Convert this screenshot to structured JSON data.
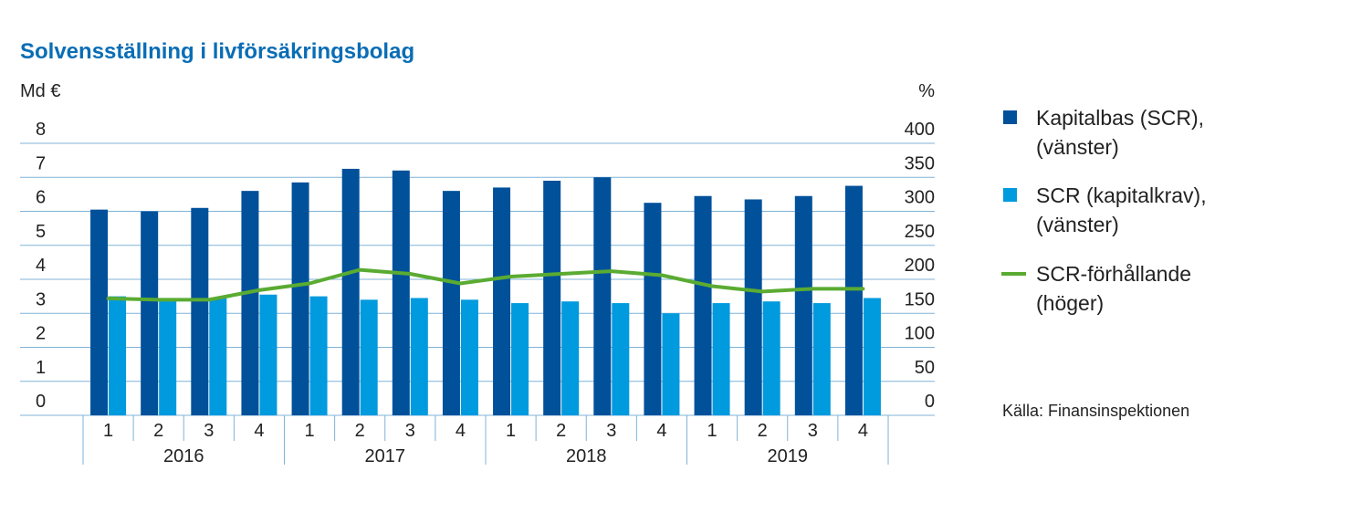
{
  "chart_data": {
    "type": "bar",
    "title": "Solvensställning i livförsäkringsbolag",
    "left_unit": "Md €",
    "right_unit": "%",
    "left_ylim": [
      0,
      8
    ],
    "right_ylim": [
      0,
      400
    ],
    "left_ticks": [
      "0",
      "1",
      "2",
      "3",
      "4",
      "5",
      "6",
      "7",
      "8"
    ],
    "right_ticks": [
      "0",
      "50",
      "100",
      "150",
      "200",
      "250",
      "300",
      "350",
      "400"
    ],
    "quarters": [
      "1",
      "2",
      "3",
      "4",
      "1",
      "2",
      "3",
      "4",
      "1",
      "2",
      "3",
      "4",
      "1",
      "2",
      "3",
      "4"
    ],
    "years": [
      "2016",
      "2017",
      "2018",
      "2019"
    ],
    "series": [
      {
        "name": "Kapitalbas (SCR), (vänster)",
        "axis": "left",
        "kind": "bar",
        "color": "#00509a",
        "values": [
          6.05,
          6.0,
          6.1,
          6.6,
          6.85,
          7.25,
          7.2,
          6.6,
          6.7,
          6.9,
          7.0,
          6.25,
          6.45,
          6.35,
          6.45,
          6.75
        ]
      },
      {
        "name": "SCR (kapitalkrav), (vänster)",
        "axis": "left",
        "kind": "bar",
        "color": "#009ade",
        "values": [
          3.5,
          3.45,
          3.45,
          3.55,
          3.5,
          3.4,
          3.45,
          3.4,
          3.3,
          3.35,
          3.3,
          3.0,
          3.3,
          3.35,
          3.3,
          3.45
        ]
      },
      {
        "name": "SCR-förhållande (höger)",
        "axis": "right",
        "kind": "line",
        "color": "#5aab32",
        "values": [
          172,
          170,
          170,
          184,
          194,
          214,
          208,
          194,
          204,
          208,
          212,
          206,
          190,
          182,
          186,
          186
        ]
      }
    ],
    "legend": [
      {
        "line1": "Kapitalbas (SCR),",
        "line2": "(vänster)"
      },
      {
        "line1": "SCR (kapitalkrav),",
        "line2": "(vänster)"
      },
      {
        "line1": "SCR-förhållande",
        "line2": "(höger)"
      }
    ],
    "source": "Källa: Finansinspektionen",
    "colors": {
      "title": "#0a6db5",
      "grid": "#7fb3d8",
      "axis_sep": "#7fb3d8"
    }
  }
}
